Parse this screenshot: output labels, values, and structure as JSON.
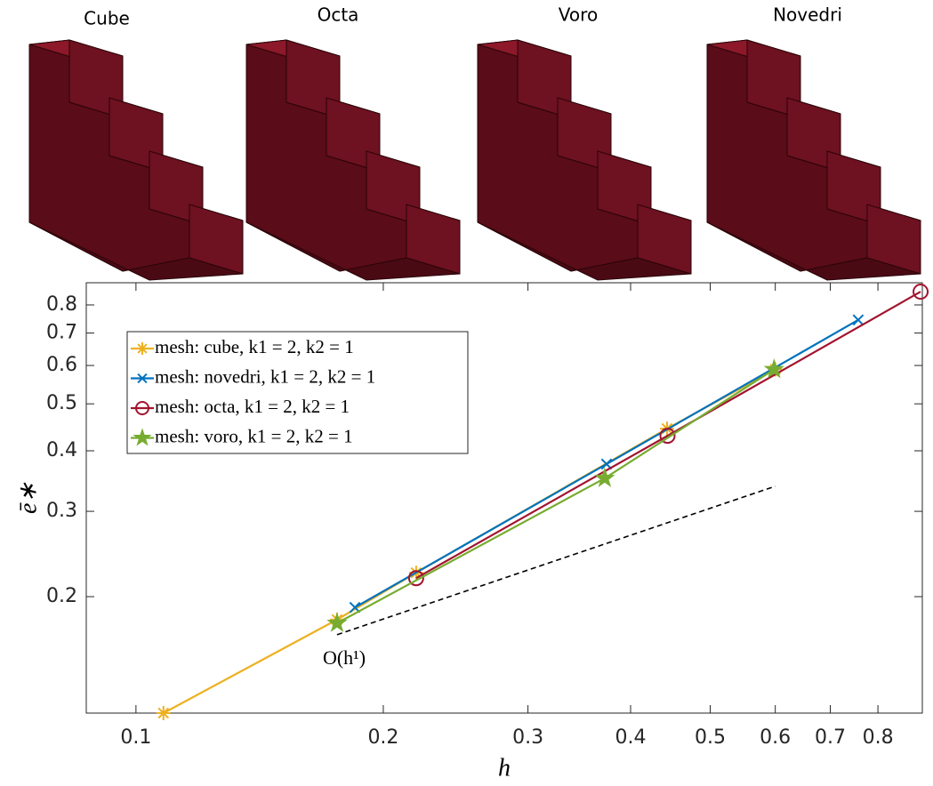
{
  "panels": [
    "Cube",
    "Octa",
    "Voro",
    "Novedri"
  ],
  "chart_data": {
    "type": "line",
    "log_x": true,
    "log_y": true,
    "xlabel": "h",
    "ylabel": "ē∗",
    "xlim": [
      0.087,
      0.906
    ],
    "ylim": [
      0.115,
      0.889
    ],
    "xticks": [
      0.1,
      0.2,
      0.3,
      0.4,
      0.5,
      0.6,
      0.7,
      0.8
    ],
    "yticks": [
      0.2,
      0.3,
      0.4,
      0.5,
      0.6,
      0.7,
      0.8
    ],
    "legend": "upper-left",
    "series": [
      {
        "name": "mesh: cube, k1 = 2, k2 = 1",
        "color": "#EDB120",
        "marker": "asterisk",
        "x": [
          0.108,
          0.1757,
          0.2193,
          0.443,
          0.6
        ],
        "values": [
          0.115,
          0.1793,
          0.224,
          0.4444,
          0.589
        ]
      },
      {
        "name": "mesh: novedri, k1 = 2, k2 = 1",
        "color": "#0072BD",
        "marker": "x",
        "x": [
          0.1847,
          0.3739,
          0.757
        ],
        "values": [
          0.19,
          0.3756,
          0.745
        ]
      },
      {
        "name": "mesh: octa, k1 = 2, k2 = 1",
        "color": "#A2142F",
        "marker": "circle",
        "x": [
          0.2193,
          0.4436,
          0.9016
        ],
        "values": [
          0.2184,
          0.4296,
          0.852
        ]
      },
      {
        "name": "mesh: voro, k1 = 2, k2 = 1",
        "color": "#77AC30",
        "marker": "star",
        "x": [
          0.1757,
          0.372,
          0.598
        ],
        "values": [
          0.1763,
          0.351,
          0.589
        ]
      }
    ],
    "reference": {
      "label": "O(h¹)",
      "color": "#000000",
      "x": [
        0.1757,
        0.6
      ],
      "values": [
        0.1669,
        0.338
      ]
    }
  }
}
